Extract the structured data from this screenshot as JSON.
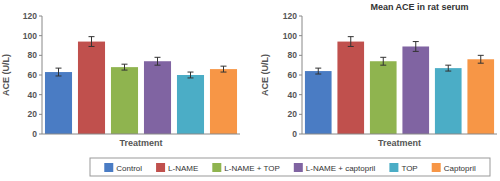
{
  "chart_data": [
    {
      "type": "bar",
      "x_label": "Treatment",
      "y_label": "ACE (U/L)",
      "categories": [
        "Control",
        "L-NAME",
        "L-NAME + TOP",
        "L-NAME + captopril",
        "TOP",
        "Captopril"
      ],
      "colors": [
        "#4a7cc4",
        "#c0504d",
        "#8fb44f",
        "#8064a2",
        "#4badc6",
        "#f79646"
      ],
      "values": [
        63,
        94,
        68,
        74,
        60,
        66
      ],
      "errors": [
        4,
        5,
        3,
        4,
        3,
        3
      ],
      "ylim": [
        0,
        120
      ],
      "yticks": [
        0,
        20,
        40,
        60,
        80,
        100,
        120
      ],
      "grid": false,
      "tick_labels": "y",
      "legend": "bottom"
    },
    {
      "type": "bar",
      "title": "Mean ACE in rat serum",
      "x_label": "Treatment",
      "y_label": "ACE (U/L)",
      "values": [
        64,
        94,
        74,
        89,
        67,
        76
      ],
      "errors": [
        3,
        5,
        4,
        5,
        3,
        4
      ],
      "ylim": [
        0,
        120
      ],
      "yticks": [
        0,
        20,
        40,
        60,
        80,
        100,
        120
      ],
      "grid": false,
      "tick_labels": "y"
    }
  ]
}
